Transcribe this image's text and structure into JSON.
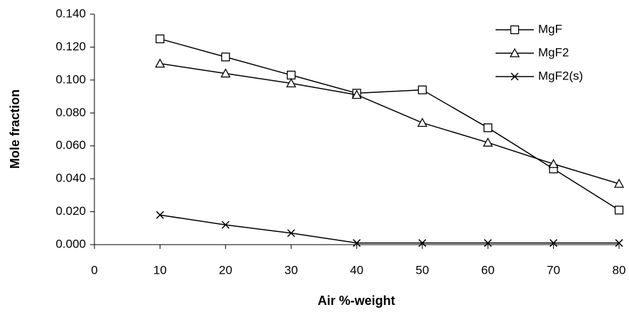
{
  "chart_data": {
    "type": "line",
    "x_label": "Air %-weight",
    "y_label": "Mole fraction",
    "x": [
      10,
      20,
      30,
      40,
      50,
      60,
      70,
      80
    ],
    "series": [
      {
        "name": "MgF",
        "color": "#000000",
        "marker": "square",
        "values": [
          0.125,
          0.114,
          0.103,
          0.092,
          0.094,
          0.071,
          0.046,
          0.021
        ]
      },
      {
        "name": "MgF2",
        "color": "#000000",
        "marker": "triangle",
        "values": [
          0.11,
          0.104,
          0.098,
          0.091,
          0.074,
          0.062,
          0.049,
          0.037
        ]
      },
      {
        "name": "MgF2(s)",
        "color": "#000000",
        "marker": "x",
        "values": [
          0.018,
          0.012,
          0.007,
          0.001,
          0.001,
          0.001,
          0.001,
          0.001
        ]
      }
    ],
    "xlim": [
      0,
      80
    ],
    "xticks": [
      0,
      10,
      20,
      30,
      40,
      50,
      60,
      70,
      80
    ],
    "ylim": [
      0,
      0.14
    ],
    "yticks": [
      {
        "value": 0,
        "label": "0.000"
      },
      {
        "value": 0.02,
        "label": "0.020"
      },
      {
        "value": 0.04,
        "label": "0.040"
      },
      {
        "value": 0.06,
        "label": "0.060"
      },
      {
        "value": 0.08,
        "label": "0.080"
      },
      {
        "value": 0.1,
        "label": "0.100"
      },
      {
        "value": 0.12,
        "label": "0.120"
      },
      {
        "value": 0.14,
        "label": "0.140"
      }
    ],
    "grid": false,
    "legend": "top-right"
  }
}
